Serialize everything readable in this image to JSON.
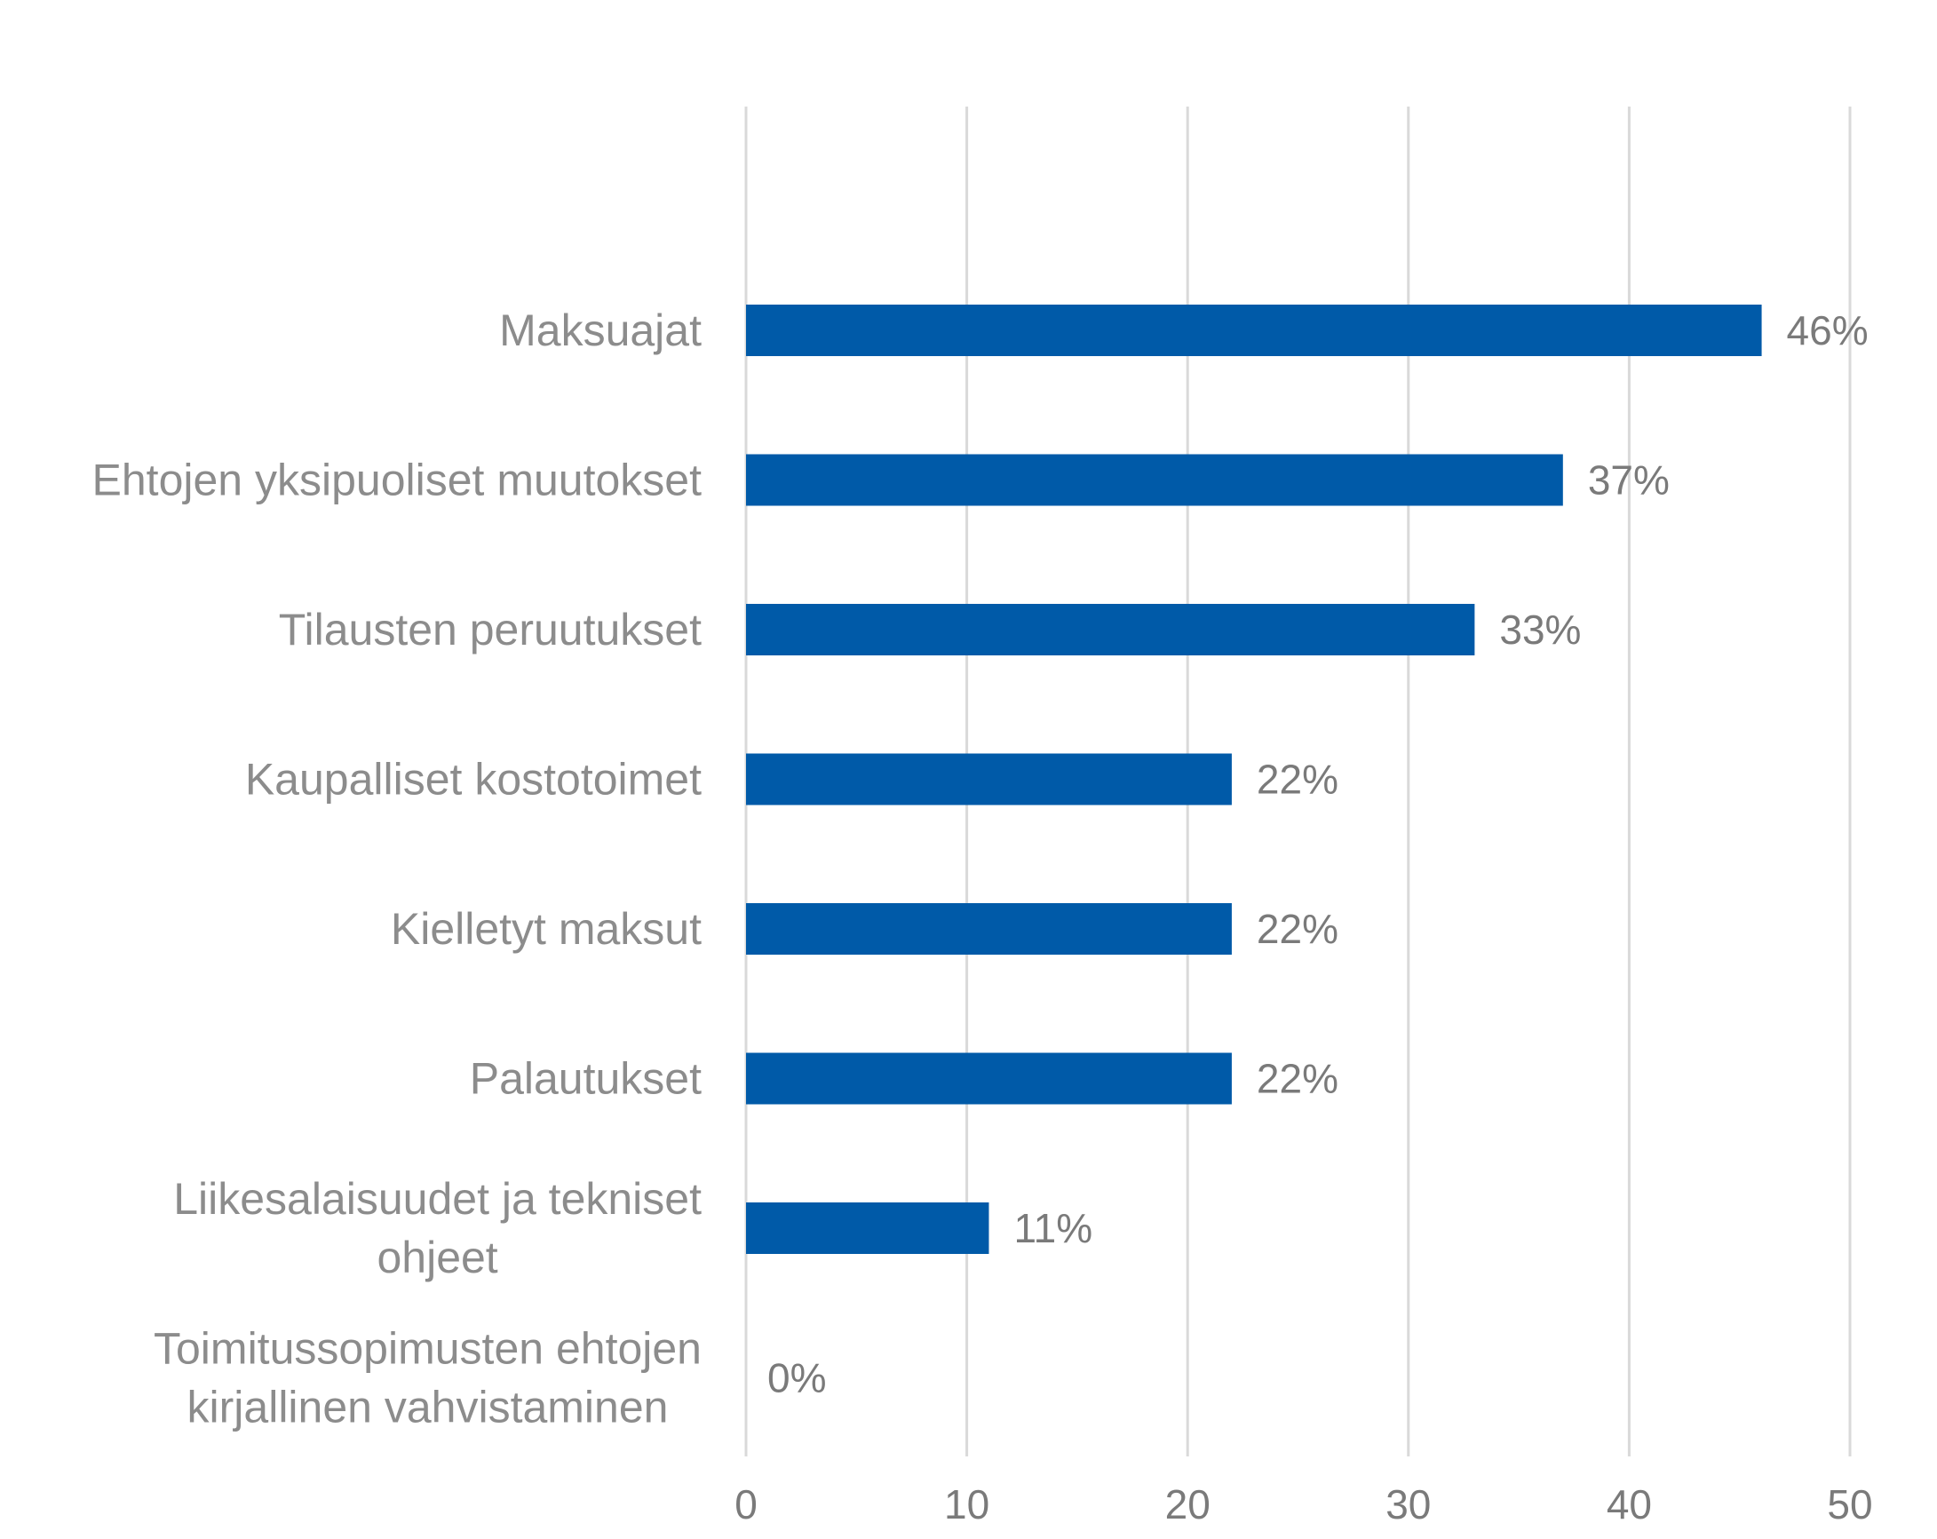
{
  "chart_data": {
    "type": "bar",
    "orientation": "horizontal",
    "title": "",
    "xlabel": "",
    "ylabel": "",
    "categories": [
      [
        "Maksuajat"
      ],
      [
        "Ehtojen yksipuoliset muutokset"
      ],
      [
        "Tilausten peruutukset"
      ],
      [
        "Kaupalliset kostotoimet"
      ],
      [
        "Kielletyt maksut"
      ],
      [
        "Palautukset"
      ],
      [
        "Liikesalaisuudet ja tekniset",
        "ohjeet"
      ],
      [
        "Toimitussopimusten ehtojen",
        "kirjallinen vahvistaminen"
      ]
    ],
    "values": [
      46,
      37,
      33,
      22,
      22,
      22,
      11,
      0
    ],
    "value_labels": [
      "46%",
      "37%",
      "33%",
      "22%",
      "22%",
      "22%",
      "11%",
      "0%"
    ],
    "xlim": [
      0,
      50
    ],
    "x_ticks": [
      0,
      10,
      20,
      30,
      40,
      50
    ],
    "x_tick_labels": [
      "0",
      "10",
      "20",
      "30",
      "40",
      "50"
    ],
    "grid": "vertical",
    "legend": "none",
    "colors": {
      "bar": "#005aa8",
      "grid": "#d9d9d9",
      "text": "#8c8c8c"
    }
  }
}
